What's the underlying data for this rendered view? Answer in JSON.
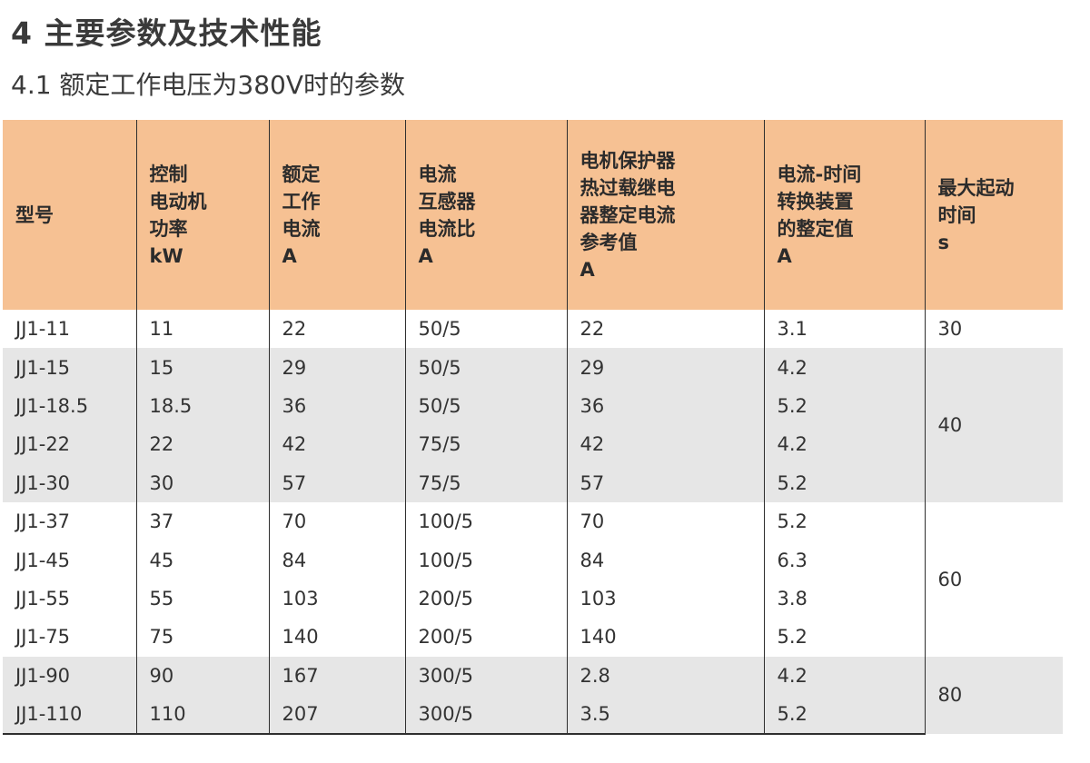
{
  "heading": "4 主要参数及技术性能",
  "subheading": "4.1 额定工作电压为380V时的参数",
  "table": {
    "headers": [
      "型号",
      "控制\n电动机\n功率\nkW",
      "额定\n工作\n电流\nA",
      "电流\n互感器\n电流比\nA",
      "电机保护器\n热过载继电\n器整定电流\n参考值\nA",
      "电流-时间\n转换装置\n的整定值\nA",
      "最大起动\n时间\ns"
    ],
    "rows": [
      [
        "JJ1-11",
        "11",
        "22",
        "50/5",
        "22",
        "3.1"
      ],
      [
        "JJ1-15",
        "15",
        "29",
        "50/5",
        "29",
        "4.2"
      ],
      [
        "JJ1-18.5",
        "18.5",
        "36",
        "50/5",
        "36",
        "5.2"
      ],
      [
        "JJ1-22",
        "22",
        "42",
        "75/5",
        "42",
        "4.2"
      ],
      [
        "JJ1-30",
        "30",
        "57",
        "75/5",
        "57",
        "5.2"
      ],
      [
        "JJ1-37",
        "37",
        "70",
        "100/5",
        "70",
        "5.2"
      ],
      [
        "JJ1-45",
        "45",
        "84",
        "100/5",
        "84",
        "6.3"
      ],
      [
        "JJ1-55",
        "55",
        "103",
        "200/5",
        "103",
        "3.8"
      ],
      [
        "JJ1-75",
        "75",
        "140",
        "200/5",
        "140",
        "5.2"
      ],
      [
        "JJ1-90",
        "90",
        "167",
        "300/5",
        "2.8",
        "4.2"
      ],
      [
        "JJ1-110",
        "110",
        "207",
        "300/5",
        "3.5",
        "5.2"
      ]
    ],
    "max_start_time_groups": [
      "30",
      "40",
      "60",
      "80"
    ]
  },
  "colors": {
    "header_bg": "#f6c193",
    "shaded_row_bg": "#e6e6e6",
    "rule": "#2f2f2f"
  }
}
